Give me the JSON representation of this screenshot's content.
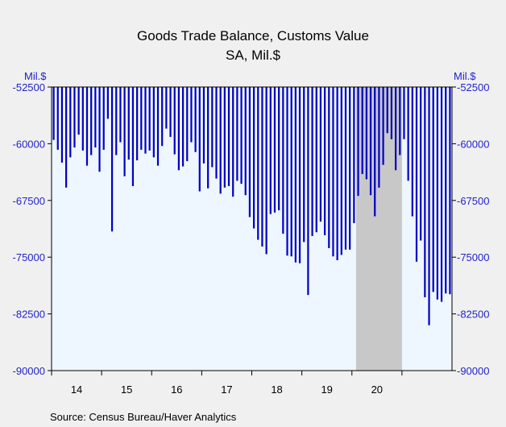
{
  "chart_data": {
    "type": "bar",
    "title": "Goods Trade Balance, Customs Value",
    "subtitle": "SA, Mil.$",
    "ylabel_left": "Mil.$",
    "ylabel_right": "Mil.$",
    "ylim": [
      -90000,
      -52500
    ],
    "yticks": [
      -52500,
      -60000,
      -67500,
      -75000,
      -82500,
      -90000
    ],
    "ytick_labels": [
      "-52500",
      "-60000",
      "-67500",
      "-75000",
      "-82500",
      "-90000"
    ],
    "x_year_labels": [
      "14",
      "15",
      "16",
      "17",
      "18",
      "19",
      "20"
    ],
    "start": "2014-01",
    "recession_shading": {
      "from": "2020-02",
      "to": "2020-12"
    },
    "bar_color": "#0000c0",
    "plot_bg": "#eef6ff",
    "shade_color": "#c8c8c8",
    "values": [
      -59500,
      -60800,
      -62500,
      -65800,
      -61800,
      -60500,
      -58800,
      -60900,
      -62900,
      -61500,
      -60500,
      -63700,
      -60800,
      -56700,
      -71600,
      -61500,
      -59800,
      -64300,
      -62100,
      -65600,
      -62200,
      -60800,
      -61300,
      -60900,
      -61800,
      -62900,
      -60300,
      -58000,
      -59100,
      -61400,
      -63500,
      -63000,
      -62300,
      -59800,
      -61100,
      -66300,
      -62600,
      -65900,
      -63100,
      -64600,
      -66600,
      -65800,
      -65600,
      -67000,
      -64900,
      -65300,
      -66800,
      -69700,
      -71200,
      -72700,
      -73600,
      -74600,
      -69300,
      -69100,
      -68800,
      -71900,
      -74800,
      -74900,
      -75700,
      -75800,
      -73000,
      -80000,
      -72200,
      -71700,
      -70300,
      -72100,
      -73800,
      -74900,
      -75400,
      -74700,
      -74000,
      -74000,
      -70500,
      -66900,
      -64000,
      -64700,
      -66800,
      -69600,
      -65800,
      -62800,
      -58600,
      -59400,
      -63500,
      -61500,
      -59400,
      -64900,
      -69600,
      -75600,
      -72800,
      -80300,
      -84000,
      -79600,
      -80600,
      -80900,
      -79800,
      -79900
    ],
    "source": "Source:  Census Bureau/Haver Analytics"
  }
}
